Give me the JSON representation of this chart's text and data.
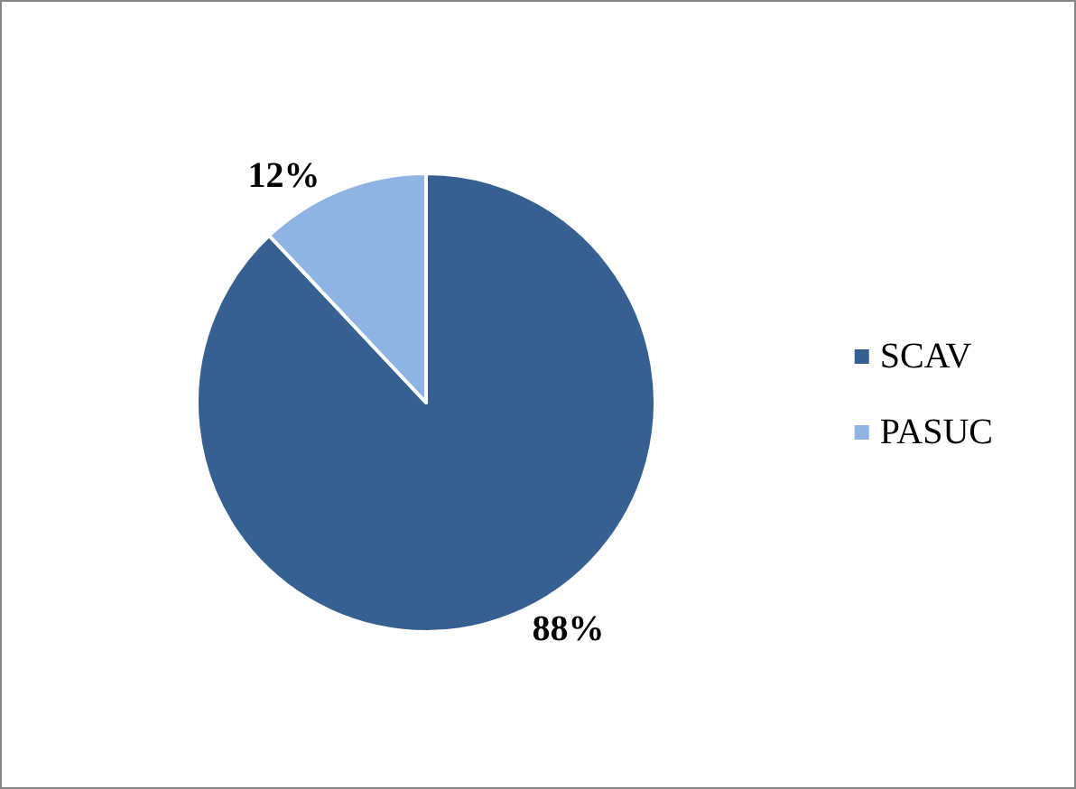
{
  "chart_data": {
    "type": "pie",
    "categories": [
      "SCAV",
      "PASUC"
    ],
    "values": [
      88,
      12
    ],
    "colors": [
      "#376092",
      "#8eb4e3"
    ],
    "value_labels": [
      "88%",
      "12%"
    ],
    "legend": "right"
  }
}
